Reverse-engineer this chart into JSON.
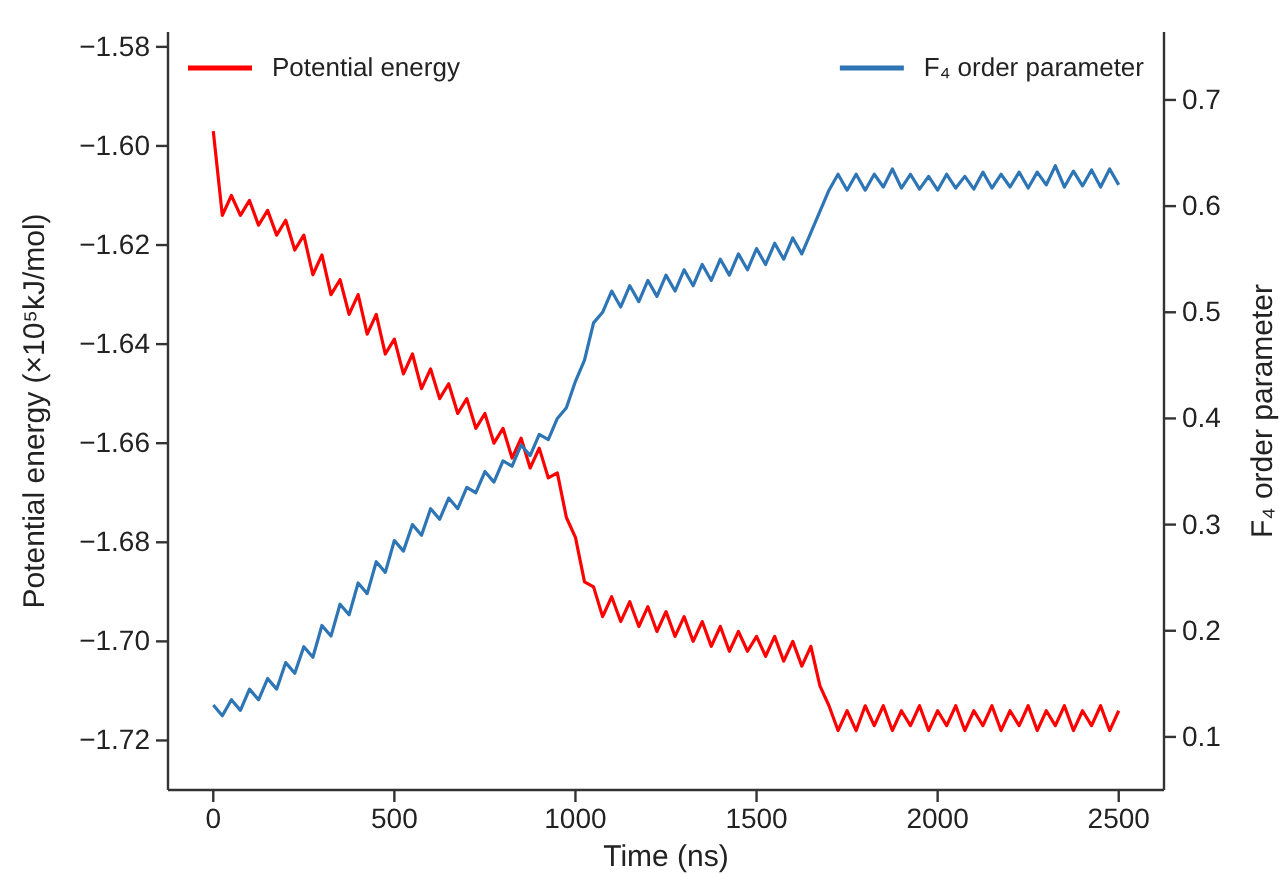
{
  "chart_data": {
    "type": "line",
    "xlabel": "Time (ns)",
    "ylabel": "Potential energy (×10⁵kJ/mol)",
    "y2label": "F₄ order parameter",
    "x": [
      0,
      25,
      50,
      75,
      100,
      125,
      150,
      175,
      200,
      225,
      250,
      275,
      300,
      325,
      350,
      375,
      400,
      425,
      450,
      475,
      500,
      525,
      550,
      575,
      600,
      625,
      650,
      675,
      700,
      725,
      750,
      775,
      800,
      825,
      850,
      875,
      900,
      925,
      950,
      975,
      1000,
      1025,
      1050,
      1075,
      1100,
      1125,
      1150,
      1175,
      1200,
      1225,
      1250,
      1275,
      1300,
      1325,
      1350,
      1375,
      1400,
      1425,
      1450,
      1475,
      1500,
      1525,
      1550,
      1575,
      1600,
      1625,
      1650,
      1675,
      1700,
      1725,
      1750,
      1775,
      1800,
      1825,
      1850,
      1875,
      1900,
      1925,
      1950,
      1975,
      2000,
      2025,
      2050,
      2075,
      2100,
      2125,
      2150,
      2175,
      2200,
      2225,
      2250,
      2275,
      2300,
      2325,
      2350,
      2375,
      2400,
      2425,
      2450,
      2475,
      2500
    ],
    "series": [
      {
        "name": "Potential energy",
        "color": "#ff0000",
        "values": [
          -1.597,
          -1.614,
          -1.61,
          -1.614,
          -1.611,
          -1.616,
          -1.613,
          -1.618,
          -1.615,
          -1.621,
          -1.618,
          -1.626,
          -1.622,
          -1.63,
          -1.627,
          -1.634,
          -1.63,
          -1.638,
          -1.634,
          -1.642,
          -1.639,
          -1.646,
          -1.642,
          -1.649,
          -1.645,
          -1.651,
          -1.648,
          -1.654,
          -1.651,
          -1.657,
          -1.654,
          -1.66,
          -1.657,
          -1.663,
          -1.659,
          -1.665,
          -1.661,
          -1.667,
          -1.666,
          -1.675,
          -1.679,
          -1.688,
          -1.689,
          -1.695,
          -1.691,
          -1.696,
          -1.692,
          -1.697,
          -1.693,
          -1.698,
          -1.694,
          -1.699,
          -1.695,
          -1.7,
          -1.696,
          -1.701,
          -1.697,
          -1.702,
          -1.698,
          -1.702,
          -1.699,
          -1.703,
          -1.699,
          -1.704,
          -1.7,
          -1.705,
          -1.701,
          -1.709,
          -1.713,
          -1.718,
          -1.714,
          -1.718,
          -1.713,
          -1.717,
          -1.713,
          -1.718,
          -1.714,
          -1.717,
          -1.713,
          -1.718,
          -1.714,
          -1.717,
          -1.713,
          -1.718,
          -1.714,
          -1.717,
          -1.713,
          -1.718,
          -1.714,
          -1.717,
          -1.713,
          -1.718,
          -1.714,
          -1.717,
          -1.713,
          -1.718,
          -1.714,
          -1.717,
          -1.713,
          -1.718,
          -1.714
        ]
      },
      {
        "name": "F₄ order parameter",
        "color": "#2e75b6",
        "axis": "y2",
        "values": [
          0.13,
          0.12,
          0.135,
          0.125,
          0.145,
          0.135,
          0.155,
          0.145,
          0.17,
          0.16,
          0.185,
          0.175,
          0.205,
          0.195,
          0.225,
          0.215,
          0.245,
          0.235,
          0.265,
          0.255,
          0.285,
          0.275,
          0.3,
          0.29,
          0.315,
          0.305,
          0.325,
          0.315,
          0.335,
          0.33,
          0.35,
          0.34,
          0.36,
          0.355,
          0.375,
          0.365,
          0.385,
          0.38,
          0.4,
          0.41,
          0.435,
          0.455,
          0.49,
          0.5,
          0.52,
          0.505,
          0.525,
          0.51,
          0.53,
          0.515,
          0.535,
          0.52,
          0.54,
          0.525,
          0.545,
          0.53,
          0.55,
          0.535,
          0.555,
          0.54,
          0.56,
          0.545,
          0.565,
          0.55,
          0.57,
          0.555,
          0.575,
          0.595,
          0.615,
          0.63,
          0.615,
          0.63,
          0.615,
          0.63,
          0.618,
          0.635,
          0.617,
          0.63,
          0.616,
          0.628,
          0.615,
          0.63,
          0.617,
          0.628,
          0.616,
          0.632,
          0.617,
          0.63,
          0.618,
          0.632,
          0.617,
          0.632,
          0.62,
          0.638,
          0.618,
          0.633,
          0.619,
          0.634,
          0.618,
          0.635,
          0.62
        ]
      }
    ],
    "xlim": [
      -125,
      2625
    ],
    "xticks": [
      0,
      500,
      1000,
      1500,
      2000,
      2500
    ],
    "ylim": [
      -1.73,
      -1.577
    ],
    "yticks": [
      {
        "value": -1.72,
        "label": "−1.72"
      },
      {
        "value": -1.7,
        "label": "−1.70"
      },
      {
        "value": -1.68,
        "label": "−1.68"
      },
      {
        "value": -1.66,
        "label": "−1.66"
      },
      {
        "value": -1.64,
        "label": "−1.64"
      },
      {
        "value": -1.62,
        "label": "−1.62"
      },
      {
        "value": -1.6,
        "label": "−1.60"
      },
      {
        "value": -1.58,
        "label": "−1.58"
      }
    ],
    "y2lim": [
      0.05,
      0.764
    ],
    "y2ticks": [
      0.1,
      0.2,
      0.3,
      0.4,
      0.5,
      0.6,
      0.7
    ],
    "legend": "top",
    "grid": false,
    "line_style": "solid"
  }
}
